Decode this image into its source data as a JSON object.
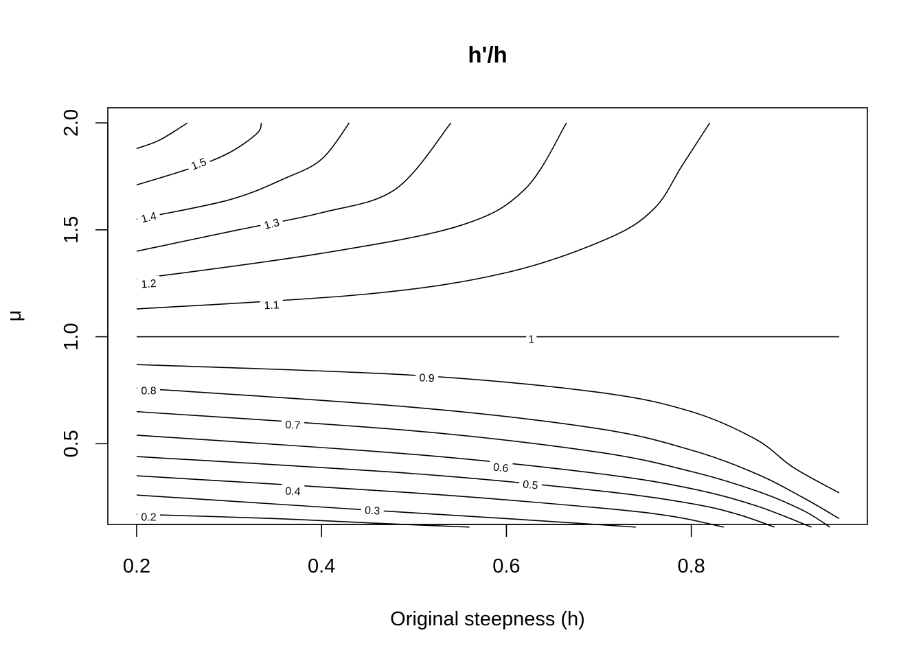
{
  "chart_data": {
    "type": "contour",
    "title": "h'/h",
    "xlabel": "Original steepness (h)",
    "ylabel": "μ",
    "xlim": [
      0.2,
      0.96
    ],
    "ylim": [
      0.1,
      2.0
    ],
    "x_ticks": [
      "0.2",
      "0.4",
      "0.6",
      "0.8"
    ],
    "y_ticks": [
      "0.5",
      "1.0",
      "1.5",
      "2.0"
    ],
    "grid": false,
    "contours": [
      {
        "level": 1.6,
        "label": "",
        "points": [
          [
            0.2,
            1.88
          ],
          [
            0.225,
            1.92
          ],
          [
            0.255,
            2.0
          ]
        ]
      },
      {
        "level": 1.5,
        "label": "1.5",
        "points": [
          [
            0.2,
            1.71
          ],
          [
            0.26,
            1.79
          ],
          [
            0.3,
            1.86
          ],
          [
            0.33,
            1.95
          ],
          [
            0.335,
            2.0
          ]
        ]
      },
      {
        "level": 1.4,
        "label": "1.4",
        "points": [
          [
            0.2,
            1.55
          ],
          [
            0.3,
            1.64
          ],
          [
            0.36,
            1.74
          ],
          [
            0.4,
            1.83
          ],
          [
            0.43,
            2.0
          ]
        ]
      },
      {
        "level": 1.3,
        "label": "1.3",
        "points": [
          [
            0.2,
            1.4
          ],
          [
            0.31,
            1.5
          ],
          [
            0.4,
            1.58
          ],
          [
            0.48,
            1.69
          ],
          [
            0.54,
            2.0
          ]
        ]
      },
      {
        "level": 1.2,
        "label": "1.2",
        "points": [
          [
            0.2,
            1.27
          ],
          [
            0.4,
            1.39
          ],
          [
            0.55,
            1.52
          ],
          [
            0.62,
            1.69
          ],
          [
            0.665,
            2.0
          ]
        ]
      },
      {
        "level": 1.1,
        "label": "1.1",
        "points": [
          [
            0.2,
            1.13
          ],
          [
            0.45,
            1.2
          ],
          [
            0.6,
            1.3
          ],
          [
            0.71,
            1.46
          ],
          [
            0.76,
            1.6
          ],
          [
            0.79,
            1.8
          ],
          [
            0.82,
            2.0
          ]
        ]
      },
      {
        "level": 1.0,
        "label": "1",
        "points": [
          [
            0.2,
            1.0
          ],
          [
            0.96,
            1.0
          ]
        ]
      },
      {
        "level": 0.9,
        "label": "0.9",
        "points": [
          [
            0.2,
            0.87
          ],
          [
            0.5,
            0.82
          ],
          [
            0.7,
            0.74
          ],
          [
            0.8,
            0.65
          ],
          [
            0.87,
            0.52
          ],
          [
            0.91,
            0.39
          ],
          [
            0.96,
            0.27
          ]
        ]
      },
      {
        "level": 0.8,
        "label": "0.8",
        "points": [
          [
            0.2,
            0.76
          ],
          [
            0.5,
            0.67
          ],
          [
            0.7,
            0.57
          ],
          [
            0.8,
            0.47
          ],
          [
            0.87,
            0.36
          ],
          [
            0.92,
            0.25
          ],
          [
            0.96,
            0.15
          ]
        ]
      },
      {
        "level": 0.7,
        "label": "0.7",
        "points": [
          [
            0.2,
            0.65
          ],
          [
            0.5,
            0.56
          ],
          [
            0.7,
            0.46
          ],
          [
            0.8,
            0.37
          ],
          [
            0.87,
            0.28
          ],
          [
            0.92,
            0.19
          ],
          [
            0.95,
            0.11
          ]
        ]
      },
      {
        "level": 0.6,
        "label": "0.6",
        "points": [
          [
            0.2,
            0.54
          ],
          [
            0.5,
            0.45
          ],
          [
            0.7,
            0.36
          ],
          [
            0.8,
            0.29
          ],
          [
            0.87,
            0.21
          ],
          [
            0.93,
            0.11
          ]
        ]
      },
      {
        "level": 0.5,
        "label": "0.5",
        "points": [
          [
            0.2,
            0.44
          ],
          [
            0.5,
            0.36
          ],
          [
            0.7,
            0.28
          ],
          [
            0.8,
            0.22
          ],
          [
            0.85,
            0.17
          ],
          [
            0.89,
            0.11
          ]
        ]
      },
      {
        "level": 0.4,
        "label": "0.4",
        "points": [
          [
            0.2,
            0.35
          ],
          [
            0.5,
            0.27
          ],
          [
            0.7,
            0.2
          ],
          [
            0.78,
            0.16
          ],
          [
            0.835,
            0.11
          ]
        ]
      },
      {
        "level": 0.3,
        "label": "0.3",
        "points": [
          [
            0.2,
            0.26
          ],
          [
            0.45,
            0.19
          ],
          [
            0.6,
            0.15
          ],
          [
            0.74,
            0.11
          ]
        ]
      },
      {
        "level": 0.2,
        "label": "0.2",
        "points": [
          [
            0.2,
            0.17
          ],
          [
            0.35,
            0.15
          ],
          [
            0.45,
            0.13
          ],
          [
            0.56,
            0.11
          ]
        ]
      }
    ],
    "label_positions": [
      {
        "text": "1.5",
        "x": 0.267,
        "y": 1.81,
        "angle": -21
      },
      {
        "text": "1.4",
        "x": 0.213,
        "y": 1.56,
        "angle": -14
      },
      {
        "text": "1.3",
        "x": 0.346,
        "y": 1.53,
        "angle": -14
      },
      {
        "text": "1.2",
        "x": 0.213,
        "y": 1.25,
        "angle": -4
      },
      {
        "text": "1.1",
        "x": 0.346,
        "y": 1.15,
        "angle": -3
      },
      {
        "text": "1",
        "x": 0.627,
        "y": 0.99,
        "angle": 0
      },
      {
        "text": "0.9",
        "x": 0.514,
        "y": 0.81,
        "angle": 3
      },
      {
        "text": "0.8",
        "x": 0.213,
        "y": 0.75,
        "angle": 0
      },
      {
        "text": "0.7",
        "x": 0.369,
        "y": 0.59,
        "angle": 3
      },
      {
        "text": "0.6",
        "x": 0.594,
        "y": 0.39,
        "angle": 5
      },
      {
        "text": "0.5",
        "x": 0.626,
        "y": 0.31,
        "angle": 6
      },
      {
        "text": "0.4",
        "x": 0.369,
        "y": 0.28,
        "angle": 3
      },
      {
        "text": "0.3",
        "x": 0.455,
        "y": 0.19,
        "angle": 3
      },
      {
        "text": "0.2",
        "x": 0.213,
        "y": 0.16,
        "angle": 0
      }
    ]
  }
}
